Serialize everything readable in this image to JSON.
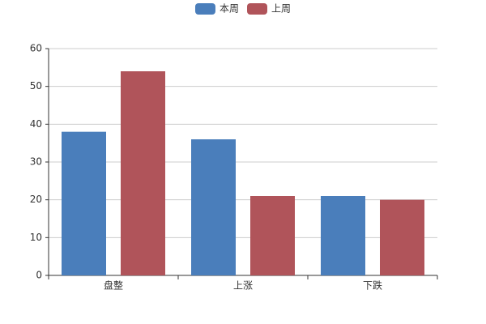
{
  "chart_data": {
    "type": "bar",
    "categories": [
      "盘整",
      "上涨",
      "下跌"
    ],
    "series": [
      {
        "name": "本周",
        "color": "#4a7ebb",
        "values": [
          38,
          36,
          21
        ]
      },
      {
        "name": "上周",
        "color": "#b0545a",
        "values": [
          54,
          21,
          20
        ]
      }
    ],
    "ylim": [
      0,
      60
    ],
    "yticks": [
      0,
      10,
      20,
      30,
      40,
      50,
      60
    ],
    "grid": true,
    "legend": "top"
  }
}
